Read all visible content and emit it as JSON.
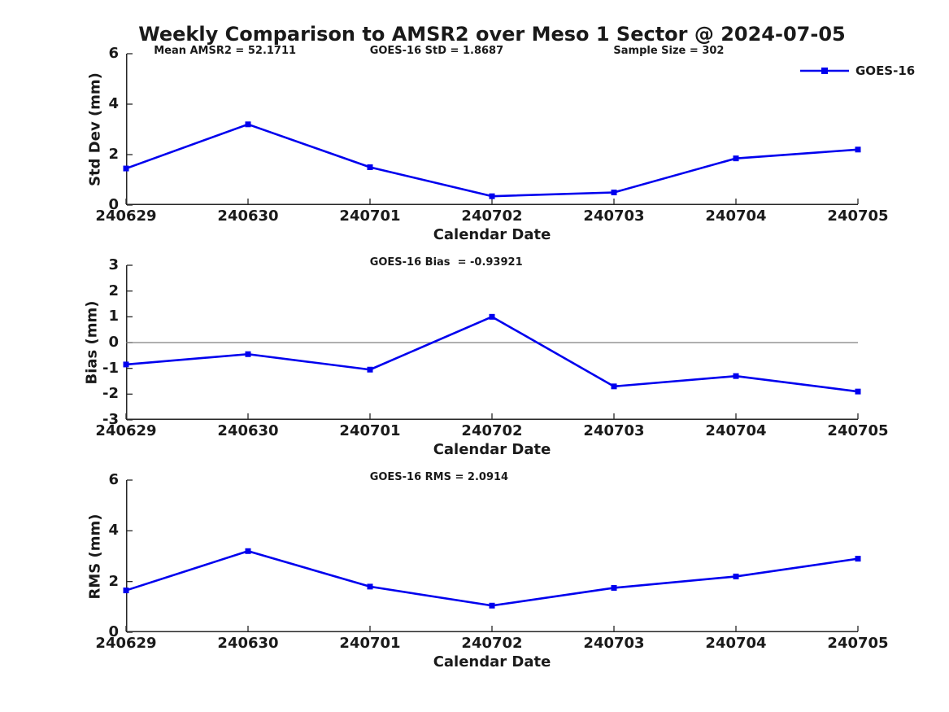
{
  "title": "Weekly Comparison to AMSR2 over Meso 1 Sector @ 2024-07-05",
  "legend": {
    "label": "GOES-16"
  },
  "colors": {
    "series_blue": "#0000EE",
    "axis": "#262626",
    "text": "#1A1A1A",
    "zero_line": "#808080",
    "background": "#FFFFFF"
  },
  "chart_data": [
    {
      "type": "line",
      "ylabel": "Std Dev (mm)",
      "xlabel": "Calendar Date",
      "categories": [
        "240629",
        "240630",
        "240701",
        "240702",
        "240703",
        "240704",
        "240705"
      ],
      "series": [
        {
          "name": "GOES-16",
          "color": "#0000EE",
          "marker": "square",
          "values": [
            1.45,
            3.2,
            1.5,
            0.35,
            0.5,
            1.85,
            2.2
          ]
        }
      ],
      "ylim": [
        0,
        6
      ],
      "yticks": [
        0,
        2,
        4,
        6
      ],
      "grid": false,
      "legend_position": "top-right-outside",
      "annotations": [
        "Mean AMSR2 = 52.1711",
        "GOES-16 StD = 1.8687",
        "Sample Size = 302"
      ]
    },
    {
      "type": "line",
      "ylabel": "Bias (mm)",
      "xlabel": "Calendar Date",
      "categories": [
        "240629",
        "240630",
        "240701",
        "240702",
        "240703",
        "240704",
        "240705"
      ],
      "series": [
        {
          "name": "GOES-16",
          "color": "#0000EE",
          "marker": "square",
          "values": [
            -0.85,
            -0.45,
            -1.05,
            1.0,
            -1.7,
            -1.3,
            -1.9
          ]
        }
      ],
      "ylim": [
        -3,
        3
      ],
      "yticks": [
        -3,
        -2,
        -1,
        0,
        1,
        2,
        3
      ],
      "zero_line": true,
      "grid": false,
      "annotations": [
        "GOES-16 Bias  = -0.93921"
      ]
    },
    {
      "type": "line",
      "ylabel": "RMS (mm)",
      "xlabel": "Calendar Date",
      "categories": [
        "240629",
        "240630",
        "240701",
        "240702",
        "240703",
        "240704",
        "240705"
      ],
      "series": [
        {
          "name": "GOES-16",
          "color": "#0000EE",
          "marker": "square",
          "values": [
            1.65,
            3.2,
            1.8,
            1.05,
            1.75,
            2.2,
            2.9
          ]
        }
      ],
      "ylim": [
        0,
        6
      ],
      "yticks": [
        0,
        2,
        4,
        6
      ],
      "grid": false,
      "annotations": [
        "GOES-16 RMS = 2.0914"
      ]
    }
  ]
}
